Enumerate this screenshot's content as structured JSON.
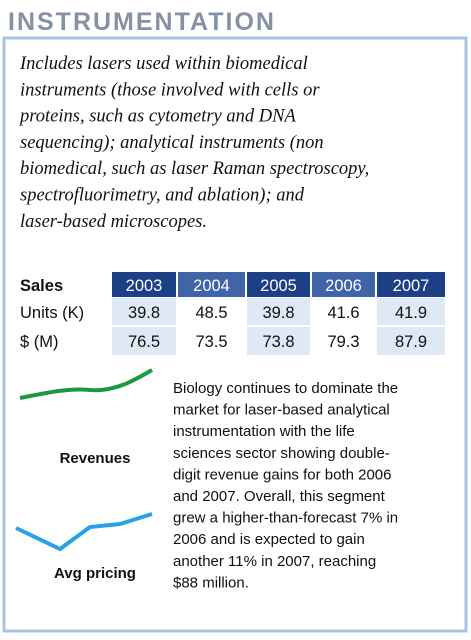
{
  "header": {
    "title": "INSTRUMENTATION"
  },
  "intro": {
    "lines": [
      "Includes lasers used within biomedical",
      "instruments (those involved with cells or",
      "proteins, such as cytometry and DNA",
      "sequencing); analytical instruments (non",
      "biomedical, such as laser Raman spectroscopy,",
      "spectrofluorimetry, and ablation); and",
      "laser-based microscopes."
    ]
  },
  "table": {
    "header": [
      "Sales",
      "2003",
      "2004",
      "2005",
      "2006",
      "2007"
    ],
    "rows": [
      [
        "Units (K)",
        "39.8",
        "48.5",
        "39.8",
        "41.6",
        "41.9"
      ],
      [
        "$ (M)",
        "76.5",
        "73.5",
        "73.8",
        "79.3",
        "87.9"
      ]
    ]
  },
  "legend": {
    "revenues": "Revenues",
    "pricing": "Avg pricing"
  },
  "body": {
    "lines": [
      "Biology continues to dominate the",
      "market for laser-based analytical",
      "instrumentation with the life",
      "sciences sector showing double-",
      "digit revenue gains for both 2006",
      "and 2007. Overall, this segment",
      "grew a higher-than-forecast 7% in",
      "2006 and is expected to gain",
      "another 11% in 2007, reaching",
      "$88 million."
    ]
  }
}
